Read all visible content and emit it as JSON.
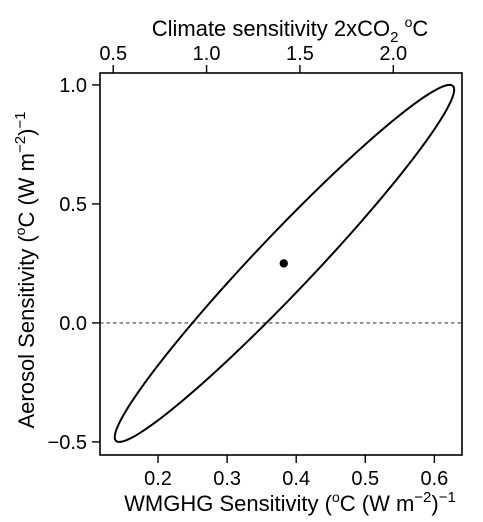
{
  "chart_data": {
    "type": "scatter",
    "xlabel": "WMGHG Sensitivity (°C (W m⁻²)⁻¹)",
    "xlabel_parts": {
      "main": "WMGHG Sensitivity (",
      "deg": "o",
      "unit": "C (W m",
      "exp": "−2",
      "end": ")",
      "endexp": "−1"
    },
    "ylabel": "Aerosol Sensitivity (°C (W m⁻²)⁻¹)",
    "ylabel_parts": {
      "main": "Aerosol Sensitivity (",
      "deg": "o",
      "unit": "C (W m",
      "exp": "−2",
      "end": ")",
      "endexp": "−1"
    },
    "top_label": "Climate sensitivity 2xCO₂ °C",
    "top_label_parts": {
      "main": "Climate sensitivity 2xCO",
      "sub": "2",
      "deg": "o",
      "unit": "C"
    },
    "xlim": [
      0.116,
      0.64
    ],
    "ylim": [
      -0.555,
      1.05
    ],
    "x_ticks": [
      0.2,
      0.3,
      0.4,
      0.5,
      0.6
    ],
    "x_tick_labels": [
      "0.2",
      "0.3",
      "0.4",
      "0.5",
      "0.6"
    ],
    "y_ticks": [
      -0.5,
      0.0,
      0.5,
      1.0
    ],
    "y_tick_labels": [
      "−0.5",
      "0.0",
      "0.5",
      "1.0"
    ],
    "top_ticks": [
      0.5,
      1.0,
      1.5,
      2.0
    ],
    "top_tick_labels": [
      "0.5",
      "1.0",
      "1.5",
      "2.0"
    ],
    "top_axis_factor": 3.7,
    "point": {
      "x": 0.382,
      "y": 0.25
    },
    "ellipse": {
      "center": [
        0.383,
        0.25
      ],
      "extremes": [
        [
          0.622,
          1.0
        ],
        [
          0.145,
          -0.5
        ],
        [
          0.25,
          0.0
        ],
        [
          0.357,
          0.0
        ]
      ]
    },
    "hline_y": 0.0,
    "grid": false,
    "legend": "none"
  }
}
